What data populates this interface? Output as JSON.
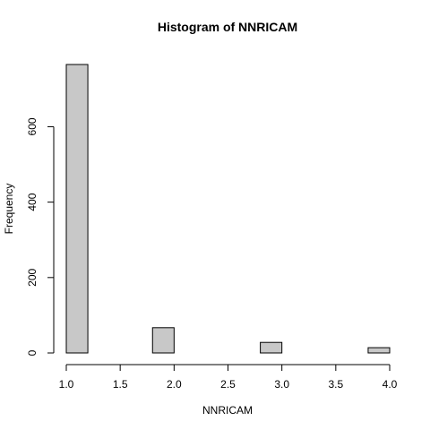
{
  "chart_data": {
    "type": "bar",
    "title": "Histogram of NNRICAM",
    "xlabel": "NNRICAM",
    "ylabel": "Frequency",
    "bins": [
      {
        "from": 1.0,
        "to": 1.2,
        "count": 765
      },
      {
        "from": 1.2,
        "to": 1.4,
        "count": 0
      },
      {
        "from": 1.4,
        "to": 1.6,
        "count": 0
      },
      {
        "from": 1.6,
        "to": 1.8,
        "count": 0
      },
      {
        "from": 1.8,
        "to": 2.0,
        "count": 67
      },
      {
        "from": 2.0,
        "to": 2.2,
        "count": 0
      },
      {
        "from": 2.2,
        "to": 2.4,
        "count": 0
      },
      {
        "from": 2.4,
        "to": 2.6,
        "count": 0
      },
      {
        "from": 2.6,
        "to": 2.8,
        "count": 0
      },
      {
        "from": 2.8,
        "to": 3.0,
        "count": 28
      },
      {
        "from": 3.0,
        "to": 3.2,
        "count": 0
      },
      {
        "from": 3.2,
        "to": 3.4,
        "count": 0
      },
      {
        "from": 3.4,
        "to": 3.6,
        "count": 0
      },
      {
        "from": 3.6,
        "to": 3.8,
        "count": 0
      },
      {
        "from": 3.8,
        "to": 4.0,
        "count": 14
      }
    ],
    "xlim": [
      1.0,
      4.0
    ],
    "ylim": [
      0,
      765
    ],
    "xticks": [
      "1.0",
      "1.5",
      "2.0",
      "2.5",
      "3.0",
      "3.5",
      "4.0"
    ],
    "yticks": [
      "0",
      "200",
      "400",
      "600"
    ],
    "grid": false,
    "bar_color": "#c8c8c8"
  }
}
